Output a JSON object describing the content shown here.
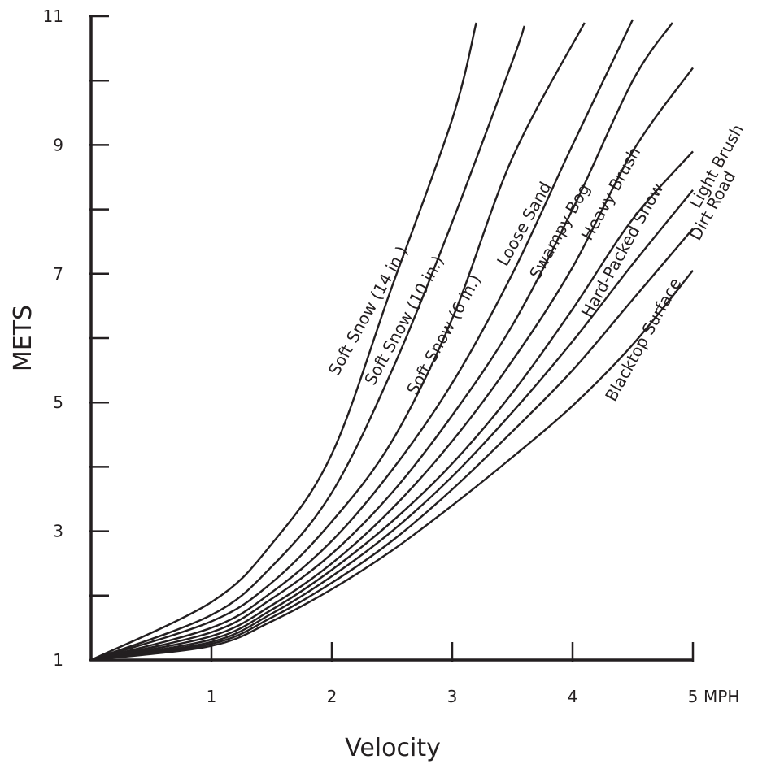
{
  "chart_data": {
    "type": "line",
    "title": "",
    "xlabel": "Velocity",
    "ylabel": "METS",
    "x_unit_suffix": "MPH",
    "xlim": [
      0,
      5
    ],
    "ylim": [
      1,
      11
    ],
    "x_ticks": [
      {
        "value": 1,
        "label": "1"
      },
      {
        "value": 2,
        "label": "2"
      },
      {
        "value": 3,
        "label": "3"
      },
      {
        "value": 4,
        "label": "4"
      },
      {
        "value": 5,
        "label": "5"
      }
    ],
    "y_ticks": [
      {
        "value": 1,
        "label": "1"
      },
      {
        "value": 2,
        "label": ""
      },
      {
        "value": 3,
        "label": "3"
      },
      {
        "value": 4,
        "label": ""
      },
      {
        "value": 5,
        "label": "5"
      },
      {
        "value": 6,
        "label": ""
      },
      {
        "value": 7,
        "label": "7"
      },
      {
        "value": 8,
        "label": ""
      },
      {
        "value": 9,
        "label": "9"
      },
      {
        "value": 10,
        "label": ""
      },
      {
        "value": 11,
        "label": "11"
      }
    ],
    "grid": false,
    "legend": "none",
    "series": [
      {
        "name": "Soft Snow (14 in.)",
        "label_at": [
          2.05,
          5.4
        ],
        "points": [
          [
            0,
            1
          ],
          [
            1,
            1.9
          ],
          [
            1.5,
            2.8
          ],
          [
            2,
            4.2
          ],
          [
            2.5,
            6.8
          ],
          [
            3,
            9.4
          ],
          [
            3.2,
            10.9
          ]
        ]
      },
      {
        "name": "Soft Snow (10 in.)",
        "label_at": [
          2.35,
          5.25
        ],
        "points": [
          [
            0,
            1
          ],
          [
            1,
            1.7
          ],
          [
            1.5,
            2.45
          ],
          [
            2,
            3.6
          ],
          [
            2.5,
            5.5
          ],
          [
            3,
            7.8
          ],
          [
            3.5,
            10.3
          ],
          [
            3.6,
            10.85
          ]
        ]
      },
      {
        "name": "Soft Snow (6 in.)",
        "label_at": [
          2.7,
          5.1
        ],
        "points": [
          [
            0,
            1
          ],
          [
            1,
            1.6
          ],
          [
            1.5,
            2.2
          ],
          [
            2,
            3.15
          ],
          [
            2.5,
            4.4
          ],
          [
            3,
            6.3
          ],
          [
            3.5,
            8.8
          ],
          [
            4.1,
            10.9
          ]
        ]
      },
      {
        "name": "Loose Sand",
        "label_at": [
          3.45,
          7.1
        ],
        "points": [
          [
            0,
            1
          ],
          [
            1,
            1.5
          ],
          [
            1.5,
            2.05
          ],
          [
            2,
            2.85
          ],
          [
            2.5,
            3.95
          ],
          [
            3,
            5.3
          ],
          [
            3.5,
            7
          ],
          [
            4,
            9
          ],
          [
            4.5,
            10.95
          ]
        ]
      },
      {
        "name": "Swampy Bog",
        "label_at": [
          3.72,
          6.9
        ],
        "points": [
          [
            0,
            1
          ],
          [
            1,
            1.43
          ],
          [
            1.5,
            1.95
          ],
          [
            2,
            2.65
          ],
          [
            2.5,
            3.6
          ],
          [
            3,
            4.8
          ],
          [
            3.5,
            6.2
          ],
          [
            4,
            8
          ],
          [
            4.5,
            10
          ],
          [
            4.83,
            10.9
          ]
        ]
      },
      {
        "name": "Heavy Brush",
        "label_at": [
          4.15,
          7.5
        ],
        "points": [
          [
            0,
            1
          ],
          [
            1,
            1.37
          ],
          [
            1.5,
            1.85
          ],
          [
            2,
            2.5
          ],
          [
            2.5,
            3.35
          ],
          [
            3,
            4.4
          ],
          [
            3.5,
            5.65
          ],
          [
            4,
            7.1
          ],
          [
            4.5,
            8.9
          ],
          [
            5,
            10.2
          ]
        ]
      },
      {
        "name": "Hard-Packed Snow",
        "label_at": [
          4.15,
          6.3
        ],
        "points": [
          [
            0,
            1
          ],
          [
            1,
            1.32
          ],
          [
            1.5,
            1.78
          ],
          [
            2,
            2.4
          ],
          [
            2.5,
            3.15
          ],
          [
            3,
            4.05
          ],
          [
            3.5,
            5.15
          ],
          [
            4,
            6.45
          ],
          [
            4.5,
            7.85
          ],
          [
            5,
            8.9
          ]
        ]
      },
      {
        "name": "Light Brush",
        "label_at": [
          5.05,
          8.0
        ],
        "points": [
          [
            0,
            1
          ],
          [
            1,
            1.28
          ],
          [
            1.5,
            1.72
          ],
          [
            2,
            2.3
          ],
          [
            2.5,
            3.0
          ],
          [
            3,
            3.85
          ],
          [
            3.5,
            4.85
          ],
          [
            4,
            5.95
          ],
          [
            4.5,
            7.15
          ],
          [
            5,
            8.3
          ]
        ]
      },
      {
        "name": "Dirt Road",
        "label_at": [
          5.05,
          7.5
        ],
        "points": [
          [
            0,
            1
          ],
          [
            1,
            1.25
          ],
          [
            1.5,
            1.66
          ],
          [
            2,
            2.2
          ],
          [
            2.5,
            2.85
          ],
          [
            3,
            3.65
          ],
          [
            3.5,
            4.55
          ],
          [
            4,
            5.5
          ],
          [
            4.5,
            6.6
          ],
          [
            5,
            7.7
          ]
        ]
      },
      {
        "name": "Blacktop Surface",
        "label_at": [
          4.35,
          5.0
        ],
        "points": [
          [
            0,
            1
          ],
          [
            1,
            1.22
          ],
          [
            1.5,
            1.6
          ],
          [
            2,
            2.1
          ],
          [
            2.5,
            2.7
          ],
          [
            3,
            3.4
          ],
          [
            3.5,
            4.15
          ],
          [
            4,
            4.95
          ],
          [
            4.5,
            5.9
          ],
          [
            5,
            7.05
          ]
        ]
      }
    ]
  }
}
